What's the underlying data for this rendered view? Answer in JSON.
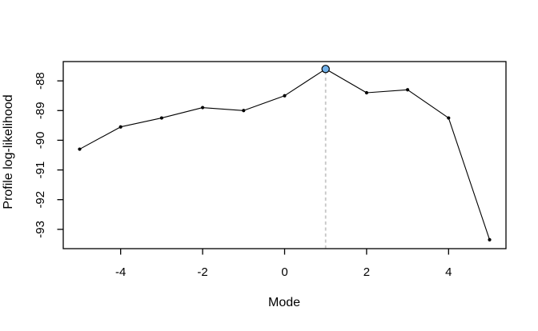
{
  "chart_data": {
    "type": "line",
    "title": "",
    "xlabel": "Mode",
    "ylabel": "Profile log-likelihood",
    "x": [
      -5,
      -4,
      -3,
      -2,
      -1,
      0,
      1,
      2,
      3,
      4,
      5
    ],
    "y": [
      -90.3,
      -89.55,
      -89.25,
      -88.9,
      -89.0,
      -88.5,
      -87.6,
      -88.4,
      -88.3,
      -89.25,
      -93.35
    ],
    "xticks": [
      -4,
      -2,
      0,
      2,
      4
    ],
    "yticks": [
      -88,
      -89,
      -90,
      -91,
      -92,
      -93
    ],
    "xlim": [
      -5.4,
      5.4
    ],
    "ylim": [
      -93.65,
      -87.35
    ],
    "grid": false,
    "legend_position": "none",
    "line_color": "#000000",
    "marker_color": "#000000",
    "axis_color": "#000000",
    "background": "#ffffff",
    "highlight_point": {
      "x": 1,
      "y": -87.6,
      "fill": "#70B1EA",
      "stroke": "#000000"
    },
    "vline": {
      "x": 1,
      "style": "dashed",
      "color": "#C6C6C6"
    }
  }
}
